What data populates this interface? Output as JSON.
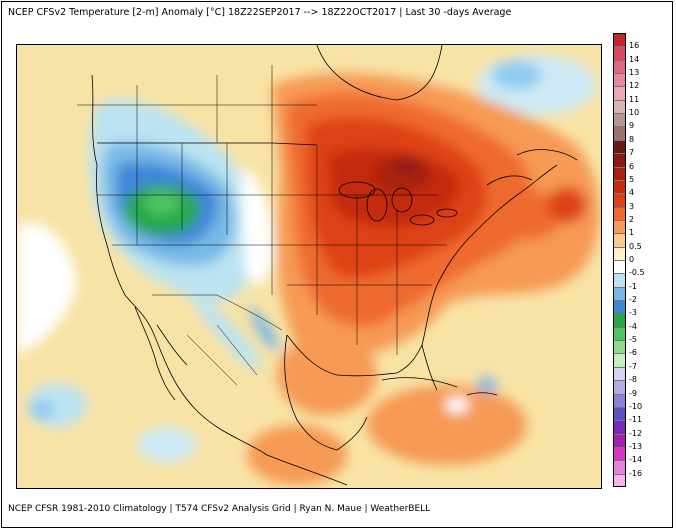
{
  "header": {
    "title": "NCEP CFSv2 Temperature [2-m] Anomaly  [°C] 18Z22SEP2017  -->  18Z22OCT2017 | Last 30 -days Average"
  },
  "footer": {
    "credit": "NCEP CFSR 1981-2010 Climatology | T574 CFSv2 Analysis Grid | Ryan N. Maue | WeatherBELL"
  },
  "legend": {
    "labels": [
      "16",
      "14",
      "13",
      "12",
      "11",
      "10",
      "9",
      "8",
      "7",
      "6",
      "5",
      "4",
      "3",
      "2",
      "1",
      "0.5",
      "0",
      "-0.5",
      "-1",
      "-2",
      "-3",
      "-4",
      "-5",
      "-6",
      "-7",
      "-8",
      "-9",
      "-10",
      "-11",
      "-12",
      "-13",
      "-14",
      "-16"
    ],
    "colors": [
      "#c1272d",
      "#d94a5c",
      "#e0687d",
      "#e58a9b",
      "#eaa9b4",
      "#d7b5b0",
      "#b79690",
      "#9a7370",
      "#6b1a14",
      "#8b1a12",
      "#a8200f",
      "#c42c0c",
      "#dd4212",
      "#ef6a2e",
      "#f69a55",
      "#fbc98a",
      "#fdf2cf",
      "#ffffff",
      "#bce3f2",
      "#78b9e6",
      "#3f86d8",
      "#27a84a",
      "#4fc563",
      "#8ddc8d",
      "#c2eec2",
      "#d6d3f2",
      "#b3abe6",
      "#8b7fd8",
      "#5d4fc7",
      "#7b2ab5",
      "#a81fb0",
      "#d338c3",
      "#e682dc",
      "#f2b6ea"
    ]
  }
}
